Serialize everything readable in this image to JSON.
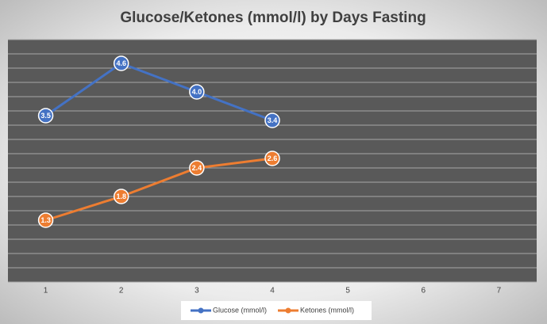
{
  "chart_data": {
    "type": "line",
    "title": "Glucose/Ketones (mmol/l) by Days Fasting",
    "categories": [
      "1",
      "2",
      "3",
      "4",
      "5",
      "6",
      "7"
    ],
    "series": [
      {
        "name": "Glucose (mmol/l)",
        "color": "#4472c4",
        "values": [
          3.5,
          4.6,
          4.0,
          3.4,
          null,
          null,
          null
        ],
        "value_labels": [
          "3.5",
          "4.6",
          "4.0",
          "3.4",
          null,
          null,
          null
        ]
      },
      {
        "name": "Ketones (mmol/l)",
        "color": "#ed7d31",
        "values": [
          1.3,
          1.8,
          2.4,
          2.6,
          null,
          null,
          null
        ],
        "value_labels": [
          "1.3",
          "1.8",
          "2.4",
          "2.6",
          null,
          null,
          null
        ]
      }
    ],
    "ylim": [
      0,
      5.1
    ],
    "yticks": [
      0,
      0.3,
      0.6,
      0.9,
      1.2,
      1.5,
      1.8,
      2.1,
      2.4,
      2.7,
      3,
      3.3,
      3.6,
      3.9,
      4.2,
      4.5,
      4.8,
      5.1
    ],
    "grid": true,
    "legend": "bottom"
  }
}
